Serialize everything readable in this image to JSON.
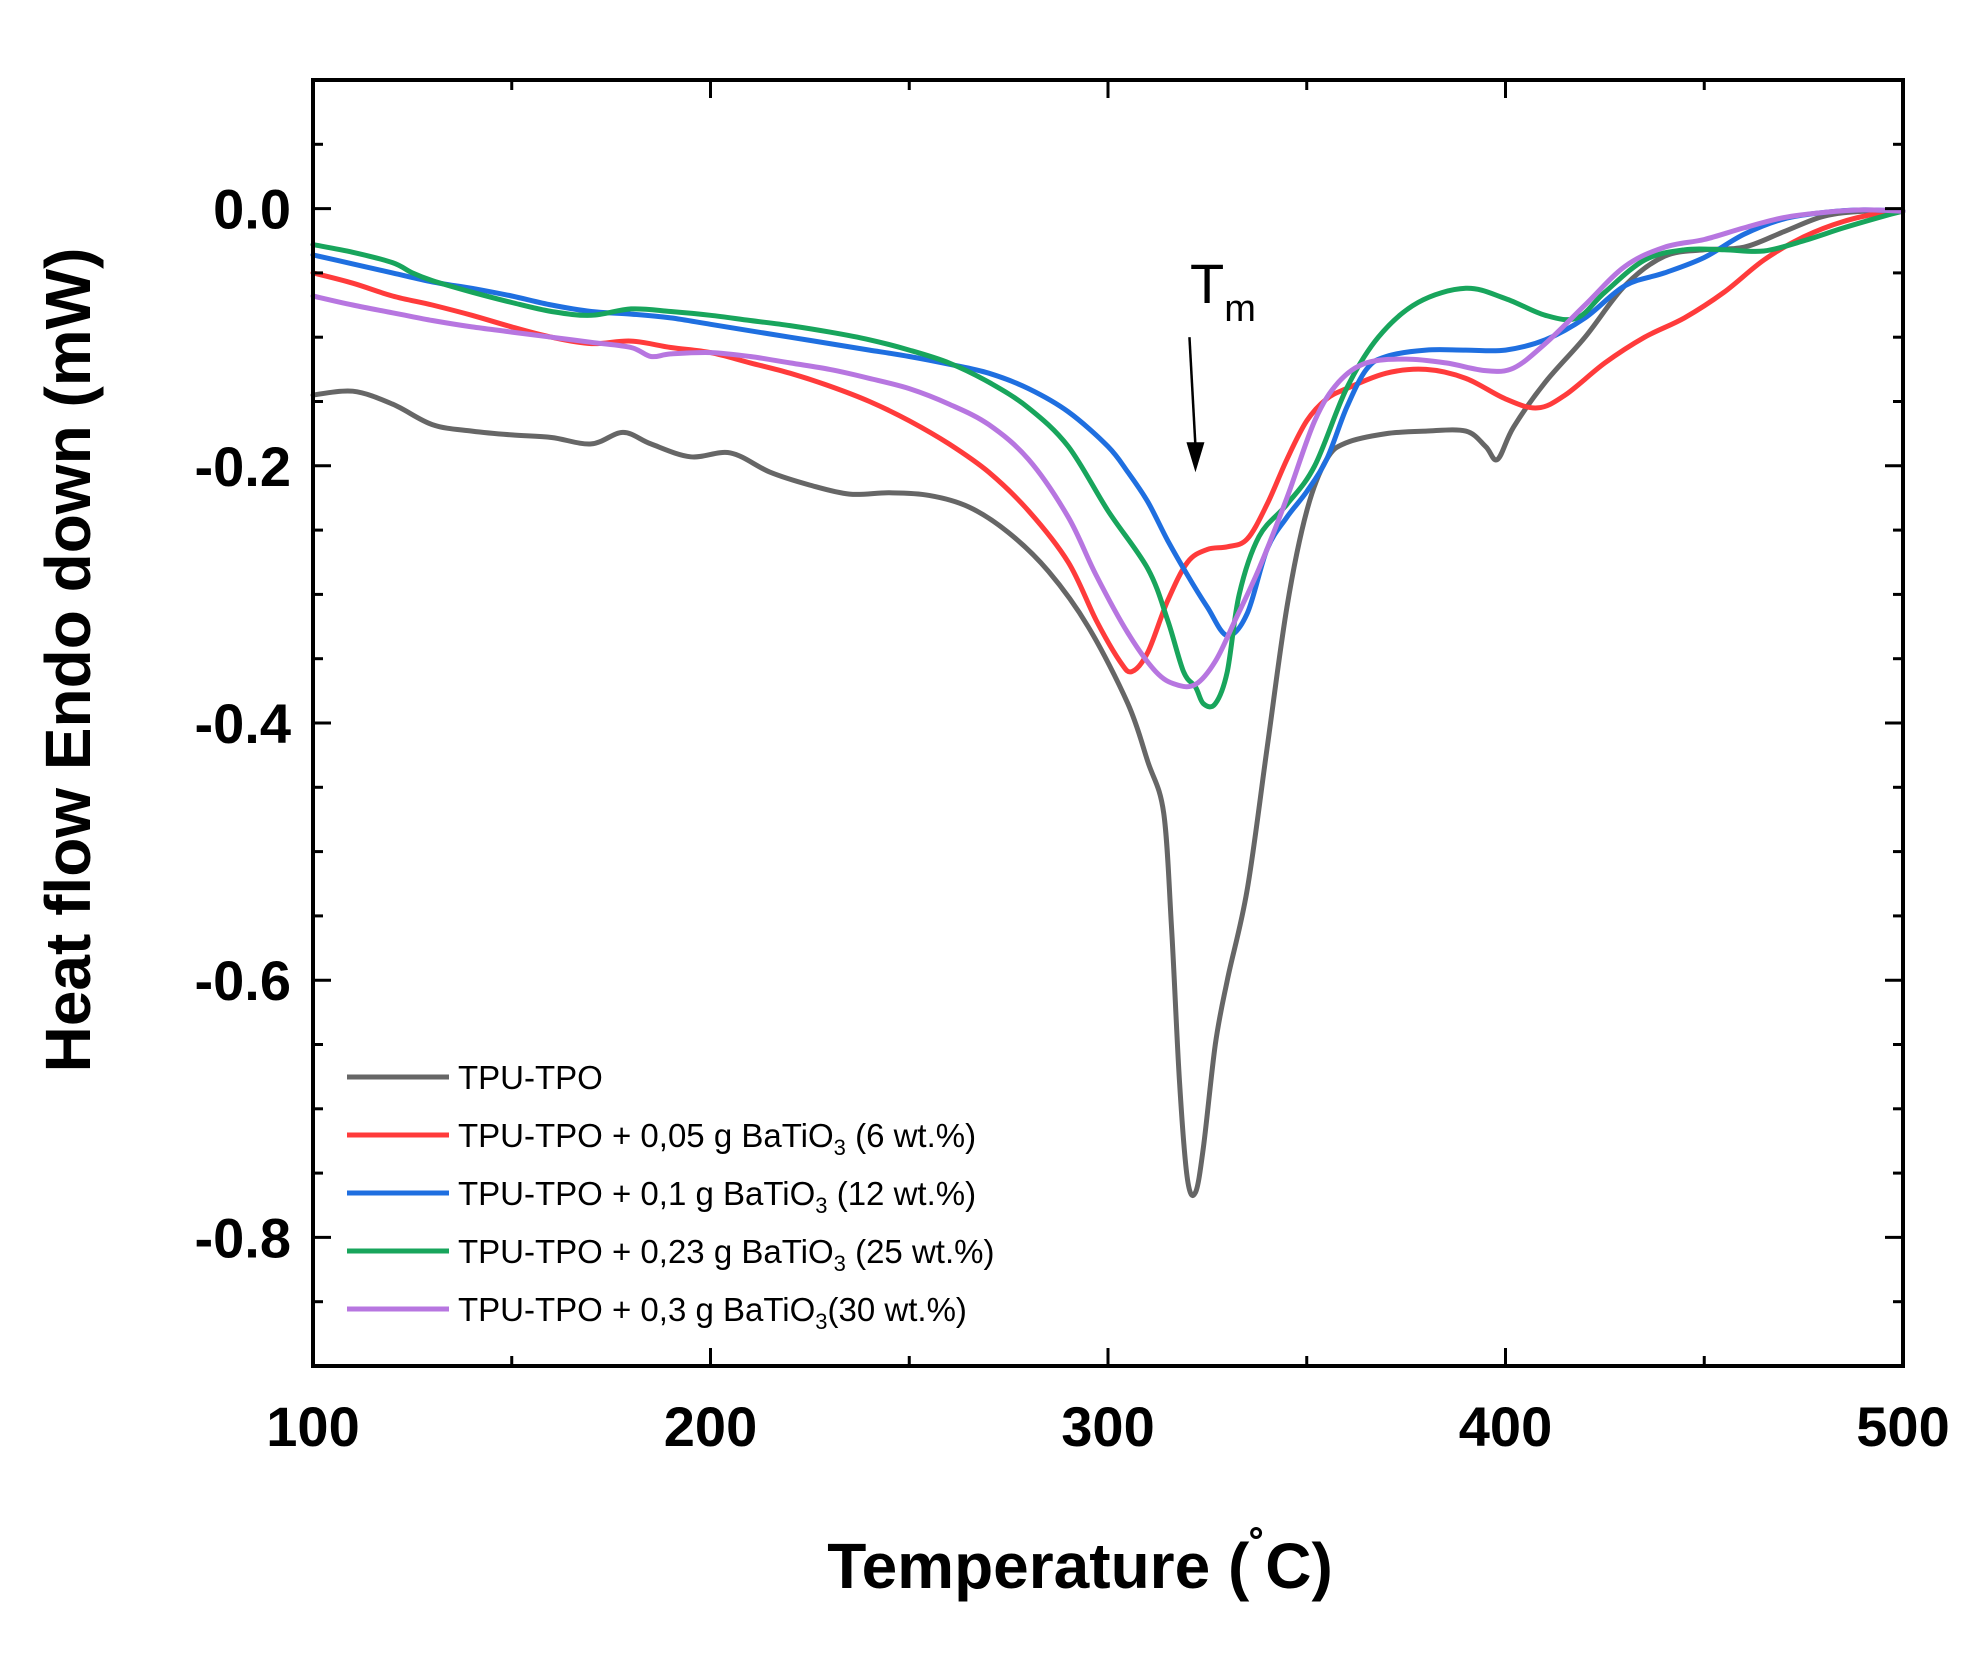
{
  "chart_data": {
    "type": "line",
    "title": "",
    "xlabel": "Temperature (˚C)",
    "xlabel_parts": {
      "main": "Temperature (",
      "degree": "˚",
      "unit": "C)"
    },
    "ylabel": "Heat flow  Endo down (mW)",
    "xlim": [
      100,
      500
    ],
    "ylim": [
      -0.9,
      0.1
    ],
    "xticks": [
      100,
      200,
      300,
      400,
      500
    ],
    "xtick_labels": [
      "100",
      "200",
      "300",
      "400",
      "500"
    ],
    "yticks": [
      0.0,
      -0.2,
      -0.4,
      -0.6,
      -0.8
    ],
    "ytick_labels": [
      "0.0",
      "-0.2",
      "-0.4",
      "-0.6",
      "-0.8"
    ],
    "grid": false,
    "legend_position": "bottom-left",
    "annotation": {
      "text": "T",
      "subscript": "m",
      "x": 322,
      "y_from": -0.1,
      "y_to": -0.205
    },
    "series": [
      {
        "name": "TPU-TPO",
        "legend": {
          "main": "TPU-TPO",
          "sub": "",
          "tail": ""
        },
        "color": "#666666",
        "points": [
          [
            100,
            -0.145
          ],
          [
            110,
            -0.142
          ],
          [
            120,
            -0.152
          ],
          [
            130,
            -0.168
          ],
          [
            140,
            -0.173
          ],
          [
            150,
            -0.176
          ],
          [
            160,
            -0.178
          ],
          [
            170,
            -0.183
          ],
          [
            178,
            -0.174
          ],
          [
            185,
            -0.183
          ],
          [
            195,
            -0.193
          ],
          [
            205,
            -0.19
          ],
          [
            215,
            -0.205
          ],
          [
            225,
            -0.215
          ],
          [
            235,
            -0.222
          ],
          [
            245,
            -0.221
          ],
          [
            255,
            -0.223
          ],
          [
            265,
            -0.232
          ],
          [
            275,
            -0.252
          ],
          [
            285,
            -0.282
          ],
          [
            295,
            -0.325
          ],
          [
            305,
            -0.385
          ],
          [
            310,
            -0.43
          ],
          [
            314,
            -0.47
          ],
          [
            316,
            -0.56
          ],
          [
            318,
            -0.68
          ],
          [
            320,
            -0.755
          ],
          [
            322,
            -0.765
          ],
          [
            324,
            -0.73
          ],
          [
            327,
            -0.65
          ],
          [
            330,
            -0.6
          ],
          [
            335,
            -0.53
          ],
          [
            340,
            -0.42
          ],
          [
            345,
            -0.31
          ],
          [
            350,
            -0.235
          ],
          [
            355,
            -0.195
          ],
          [
            360,
            -0.182
          ],
          [
            370,
            -0.175
          ],
          [
            380,
            -0.173
          ],
          [
            390,
            -0.173
          ],
          [
            395,
            -0.185
          ],
          [
            398,
            -0.195
          ],
          [
            402,
            -0.17
          ],
          [
            410,
            -0.135
          ],
          [
            420,
            -0.1
          ],
          [
            430,
            -0.06
          ],
          [
            440,
            -0.037
          ],
          [
            450,
            -0.032
          ],
          [
            460,
            -0.03
          ],
          [
            470,
            -0.018
          ],
          [
            480,
            -0.006
          ],
          [
            490,
            -0.002
          ],
          [
            500,
            -0.002
          ]
        ]
      },
      {
        "name": "TPU-TPO + 0,05 g BaTiO3 (6 wt.%)",
        "legend": {
          "main": "TPU-TPO + 0,05 g BaTiO",
          "sub": "3",
          "tail": " (6 wt.%)"
        },
        "color": "#ff3b3b",
        "points": [
          [
            100,
            -0.05
          ],
          [
            110,
            -0.058
          ],
          [
            120,
            -0.068
          ],
          [
            130,
            -0.075
          ],
          [
            140,
            -0.083
          ],
          [
            150,
            -0.092
          ],
          [
            160,
            -0.1
          ],
          [
            170,
            -0.105
          ],
          [
            180,
            -0.103
          ],
          [
            190,
            -0.108
          ],
          [
            200,
            -0.112
          ],
          [
            210,
            -0.12
          ],
          [
            220,
            -0.128
          ],
          [
            230,
            -0.138
          ],
          [
            240,
            -0.15
          ],
          [
            250,
            -0.165
          ],
          [
            260,
            -0.183
          ],
          [
            270,
            -0.205
          ],
          [
            280,
            -0.235
          ],
          [
            290,
            -0.275
          ],
          [
            297,
            -0.32
          ],
          [
            303,
            -0.352
          ],
          [
            306,
            -0.36
          ],
          [
            310,
            -0.345
          ],
          [
            315,
            -0.305
          ],
          [
            320,
            -0.275
          ],
          [
            325,
            -0.265
          ],
          [
            330,
            -0.263
          ],
          [
            335,
            -0.257
          ],
          [
            340,
            -0.23
          ],
          [
            345,
            -0.195
          ],
          [
            350,
            -0.165
          ],
          [
            355,
            -0.148
          ],
          [
            360,
            -0.14
          ],
          [
            370,
            -0.128
          ],
          [
            380,
            -0.125
          ],
          [
            390,
            -0.132
          ],
          [
            400,
            -0.148
          ],
          [
            408,
            -0.155
          ],
          [
            415,
            -0.145
          ],
          [
            425,
            -0.12
          ],
          [
            435,
            -0.1
          ],
          [
            445,
            -0.085
          ],
          [
            455,
            -0.065
          ],
          [
            465,
            -0.04
          ],
          [
            475,
            -0.022
          ],
          [
            485,
            -0.01
          ],
          [
            495,
            -0.003
          ],
          [
            500,
            -0.002
          ]
        ]
      },
      {
        "name": "TPU-TPO + 0,1 g BaTiO3 (12 wt.%)",
        "legend": {
          "main": "TPU-TPO + 0,1 g BaTiO",
          "sub": "3",
          "tail": " (12 wt.%)"
        },
        "color": "#1f6fe0",
        "points": [
          [
            100,
            -0.036
          ],
          [
            110,
            -0.043
          ],
          [
            120,
            -0.05
          ],
          [
            130,
            -0.057
          ],
          [
            140,
            -0.062
          ],
          [
            150,
            -0.068
          ],
          [
            160,
            -0.075
          ],
          [
            170,
            -0.08
          ],
          [
            180,
            -0.082
          ],
          [
            190,
            -0.085
          ],
          [
            200,
            -0.09
          ],
          [
            210,
            -0.095
          ],
          [
            220,
            -0.1
          ],
          [
            230,
            -0.105
          ],
          [
            240,
            -0.11
          ],
          [
            250,
            -0.115
          ],
          [
            260,
            -0.121
          ],
          [
            270,
            -0.128
          ],
          [
            280,
            -0.14
          ],
          [
            290,
            -0.158
          ],
          [
            300,
            -0.185
          ],
          [
            305,
            -0.205
          ],
          [
            310,
            -0.228
          ],
          [
            315,
            -0.258
          ],
          [
            320,
            -0.285
          ],
          [
            325,
            -0.31
          ],
          [
            330,
            -0.332
          ],
          [
            335,
            -0.315
          ],
          [
            340,
            -0.265
          ],
          [
            345,
            -0.24
          ],
          [
            350,
            -0.22
          ],
          [
            355,
            -0.195
          ],
          [
            360,
            -0.155
          ],
          [
            365,
            -0.125
          ],
          [
            370,
            -0.115
          ],
          [
            380,
            -0.11
          ],
          [
            390,
            -0.11
          ],
          [
            400,
            -0.11
          ],
          [
            410,
            -0.102
          ],
          [
            420,
            -0.085
          ],
          [
            430,
            -0.06
          ],
          [
            440,
            -0.05
          ],
          [
            450,
            -0.038
          ],
          [
            460,
            -0.02
          ],
          [
            470,
            -0.008
          ],
          [
            480,
            -0.003
          ],
          [
            490,
            -0.001
          ],
          [
            500,
            -0.002
          ]
        ]
      },
      {
        "name": "TPU-TPO + 0,23 g BaTiO3 (25 wt.%)",
        "legend": {
          "main": "TPU-TPO + 0,23 g BaTiO",
          "sub": "3",
          "tail": " (25 wt.%)"
        },
        "color": "#18a55c",
        "points": [
          [
            100,
            -0.028
          ],
          [
            110,
            -0.034
          ],
          [
            120,
            -0.042
          ],
          [
            125,
            -0.05
          ],
          [
            130,
            -0.056
          ],
          [
            140,
            -0.065
          ],
          [
            150,
            -0.073
          ],
          [
            160,
            -0.08
          ],
          [
            170,
            -0.083
          ],
          [
            180,
            -0.078
          ],
          [
            190,
            -0.08
          ],
          [
            200,
            -0.083
          ],
          [
            210,
            -0.087
          ],
          [
            220,
            -0.091
          ],
          [
            230,
            -0.096
          ],
          [
            240,
            -0.102
          ],
          [
            250,
            -0.11
          ],
          [
            260,
            -0.12
          ],
          [
            270,
            -0.135
          ],
          [
            280,
            -0.155
          ],
          [
            290,
            -0.185
          ],
          [
            300,
            -0.235
          ],
          [
            310,
            -0.28
          ],
          [
            315,
            -0.32
          ],
          [
            319,
            -0.36
          ],
          [
            322,
            -0.372
          ],
          [
            324,
            -0.385
          ],
          [
            327,
            -0.385
          ],
          [
            330,
            -0.36
          ],
          [
            333,
            -0.3
          ],
          [
            338,
            -0.255
          ],
          [
            345,
            -0.23
          ],
          [
            352,
            -0.2
          ],
          [
            360,
            -0.14
          ],
          [
            368,
            -0.1
          ],
          [
            378,
            -0.073
          ],
          [
            390,
            -0.062
          ],
          [
            400,
            -0.07
          ],
          [
            410,
            -0.083
          ],
          [
            418,
            -0.085
          ],
          [
            425,
            -0.065
          ],
          [
            435,
            -0.04
          ],
          [
            445,
            -0.032
          ],
          [
            455,
            -0.032
          ],
          [
            465,
            -0.033
          ],
          [
            475,
            -0.025
          ],
          [
            485,
            -0.015
          ],
          [
            495,
            -0.006
          ],
          [
            500,
            -0.002
          ]
        ]
      },
      {
        "name": "TPU-TPO + 0,3 g BaTiO3(30 wt.%)",
        "legend": {
          "main": "TPU-TPO + 0,3 g BaTiO",
          "sub": "3",
          "tail": "(30 wt.%)"
        },
        "color": "#b776e0",
        "points": [
          [
            100,
            -0.068
          ],
          [
            110,
            -0.075
          ],
          [
            120,
            -0.081
          ],
          [
            130,
            -0.087
          ],
          [
            140,
            -0.092
          ],
          [
            150,
            -0.096
          ],
          [
            160,
            -0.1
          ],
          [
            170,
            -0.104
          ],
          [
            180,
            -0.108
          ],
          [
            185,
            -0.115
          ],
          [
            190,
            -0.113
          ],
          [
            200,
            -0.112
          ],
          [
            210,
            -0.115
          ],
          [
            220,
            -0.12
          ],
          [
            230,
            -0.125
          ],
          [
            240,
            -0.132
          ],
          [
            250,
            -0.14
          ],
          [
            260,
            -0.152
          ],
          [
            270,
            -0.168
          ],
          [
            280,
            -0.195
          ],
          [
            290,
            -0.24
          ],
          [
            297,
            -0.285
          ],
          [
            305,
            -0.33
          ],
          [
            312,
            -0.36
          ],
          [
            317,
            -0.37
          ],
          [
            322,
            -0.37
          ],
          [
            327,
            -0.352
          ],
          [
            332,
            -0.32
          ],
          [
            338,
            -0.28
          ],
          [
            345,
            -0.225
          ],
          [
            352,
            -0.165
          ],
          [
            358,
            -0.135
          ],
          [
            365,
            -0.12
          ],
          [
            375,
            -0.117
          ],
          [
            385,
            -0.12
          ],
          [
            395,
            -0.126
          ],
          [
            402,
            -0.124
          ],
          [
            410,
            -0.105
          ],
          [
            420,
            -0.075
          ],
          [
            430,
            -0.045
          ],
          [
            440,
            -0.03
          ],
          [
            450,
            -0.024
          ],
          [
            460,
            -0.015
          ],
          [
            470,
            -0.007
          ],
          [
            480,
            -0.003
          ],
          [
            490,
            -0.001
          ],
          [
            500,
            -0.002
          ]
        ]
      }
    ]
  }
}
